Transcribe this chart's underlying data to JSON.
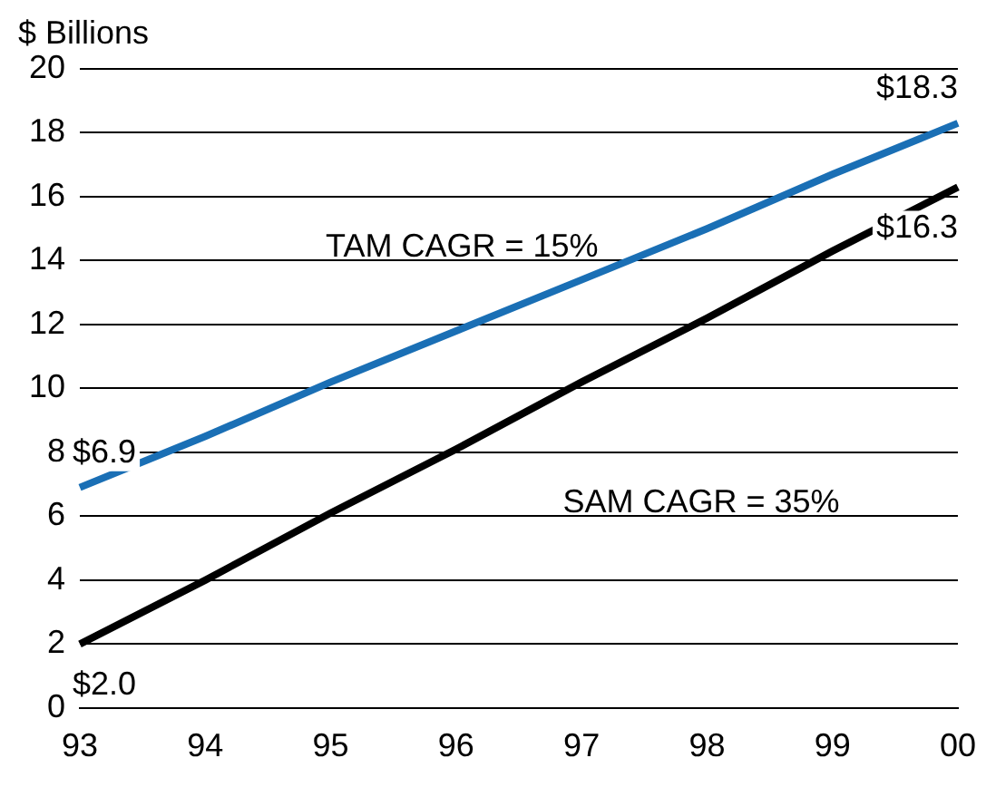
{
  "chart_data": {
    "type": "line",
    "ylabel": "$ Billions",
    "categories": [
      "93",
      "94",
      "95",
      "96",
      "97",
      "98",
      "99",
      "00"
    ],
    "series": [
      {
        "color": "#1a6fb5",
        "values": [
          6.9,
          8.5,
          10.2,
          11.8,
          13.4,
          15.0,
          16.7,
          18.3
        ],
        "value_labels": [
          "$6.9",
          null,
          null,
          null,
          null,
          null,
          null,
          "$18.3"
        ]
      },
      {
        "color": "#000000",
        "values": [
          2.0,
          4.0,
          6.1,
          8.1,
          10.2,
          12.2,
          14.3,
          16.3
        ],
        "value_labels": [
          "$2.0",
          null,
          null,
          null,
          null,
          null,
          null,
          "$16.3"
        ]
      }
    ],
    "annotations": [
      "TAM CAGR = 15%",
      "SAM CAGR = 35%"
    ],
    "ylim": [
      0,
      20
    ],
    "yticks": [
      0,
      2,
      4,
      6,
      8,
      10,
      12,
      14,
      16,
      18,
      20
    ],
    "grid": "y",
    "legend": false,
    "marker": "none",
    "line_style": "solid"
  }
}
